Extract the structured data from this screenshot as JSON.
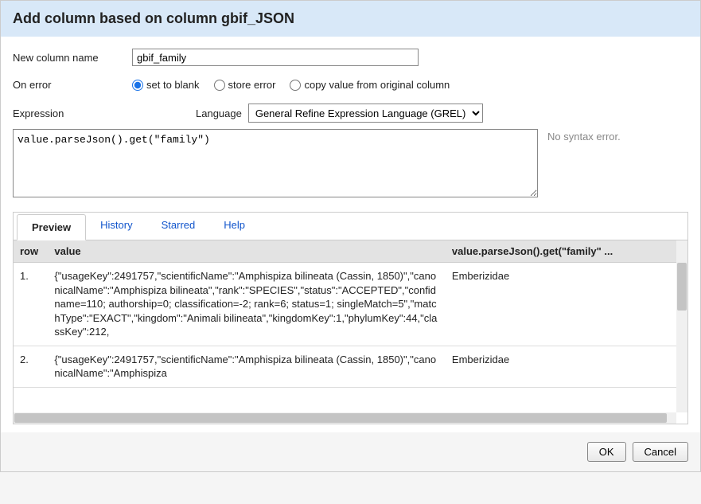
{
  "header": {
    "title": "Add column based on column gbif_JSON"
  },
  "fields": {
    "newColName": {
      "label": "New column name",
      "value": "gbif_family"
    },
    "onError": {
      "label": "On error",
      "options": [
        {
          "label": "set to blank",
          "checked": true
        },
        {
          "label": "store error",
          "checked": false
        },
        {
          "label": "copy value from original column",
          "checked": false
        }
      ]
    },
    "expression": {
      "label": "Expression",
      "langLabel": "Language",
      "langValue": "General Refine Expression Language (GREL)",
      "code": "value.parseJson().get(\"family\")",
      "syntaxMsg": "No syntax error."
    }
  },
  "tabs": {
    "items": [
      {
        "label": "Preview",
        "active": true
      },
      {
        "label": "History",
        "active": false
      },
      {
        "label": "Starred",
        "active": false
      },
      {
        "label": "Help",
        "active": false
      }
    ]
  },
  "preview": {
    "cols": {
      "row": "row",
      "value": "value",
      "result": "value.parseJson().get(\"family\" ..."
    },
    "rows": [
      {
        "n": "1.",
        "value": "{\"usageKey\":2491757,\"scientificName\":\"Amphispiza bilineata (Cassin, 1850)\",\"canonicalName\":\"Amphispiza bilineata\",\"rank\":\"SPECIES\",\"status\":\"ACCEPTED\",\"confid name=110; authorship=0; classification=-2; rank=6; status=1; singleMatch=5\",\"matchType\":\"EXACT\",\"kingdom\":\"Animali bilineata\",\"kingdomKey\":1,\"phylumKey\":44,\"classKey\":212,",
        "result": "Emberizidae"
      },
      {
        "n": "2.",
        "value": "{\"usageKey\":2491757,\"scientificName\":\"Amphispiza bilineata (Cassin, 1850)\",\"canonicalName\":\"Amphispiza",
        "result": "Emberizidae"
      }
    ]
  },
  "footer": {
    "ok": "OK",
    "cancel": "Cancel"
  }
}
